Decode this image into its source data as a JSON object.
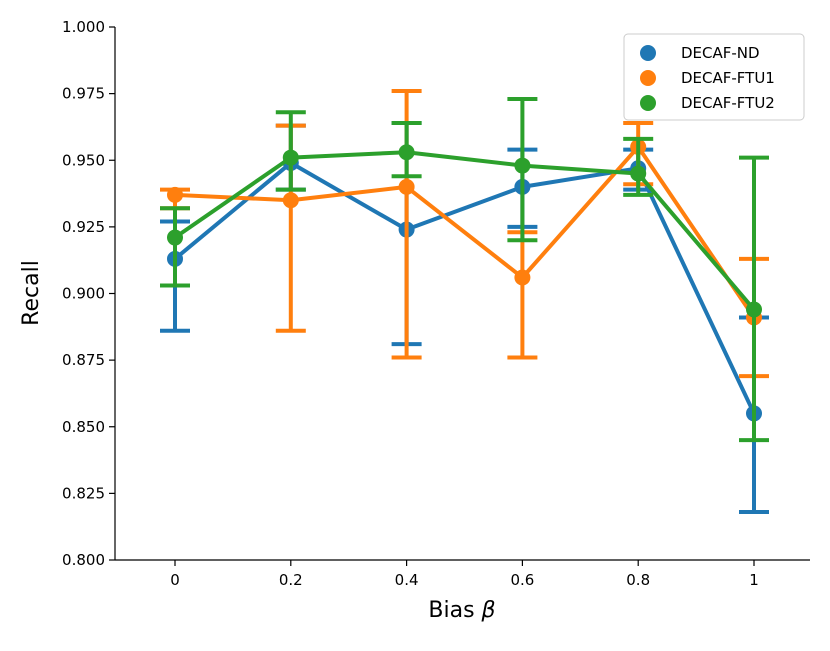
{
  "chart_data": {
    "type": "line",
    "xlabel": "Bias",
    "xlabel_symbol": "β",
    "ylabel": "Recall",
    "categories": [
      "0",
      "0.2",
      "0.4",
      "0.6",
      "0.8",
      "1"
    ],
    "ylim": [
      0.8,
      1.0
    ],
    "yticks": [
      "0.800",
      "0.825",
      "0.850",
      "0.875",
      "0.900",
      "0.925",
      "0.950",
      "0.975",
      "1.000"
    ],
    "grid": false,
    "legend_position": "top-right",
    "series": [
      {
        "name": "DECAF-ND",
        "color": "#1f77b4",
        "values": [
          0.913,
          0.949,
          0.924,
          0.94,
          0.947,
          0.855
        ],
        "err_low": [
          0.886,
          0.939,
          0.881,
          0.925,
          0.939,
          0.818
        ],
        "err_high": [
          0.927,
          0.963,
          0.964,
          0.954,
          0.954,
          0.891
        ]
      },
      {
        "name": "DECAF-FTU1",
        "color": "#ff7f0e",
        "values": [
          0.937,
          0.935,
          0.94,
          0.906,
          0.955,
          0.891
        ],
        "err_low": [
          0.932,
          0.886,
          0.876,
          0.876,
          0.941,
          0.869
        ],
        "err_high": [
          0.939,
          0.963,
          0.976,
          0.923,
          0.964,
          0.913
        ]
      },
      {
        "name": "DECAF-FTU2",
        "color": "#2ca02c",
        "values": [
          0.921,
          0.951,
          0.953,
          0.948,
          0.945,
          0.894
        ],
        "err_low": [
          0.903,
          0.939,
          0.944,
          0.92,
          0.937,
          0.845
        ],
        "err_high": [
          0.932,
          0.968,
          0.964,
          0.973,
          0.958,
          0.951
        ]
      }
    ]
  }
}
